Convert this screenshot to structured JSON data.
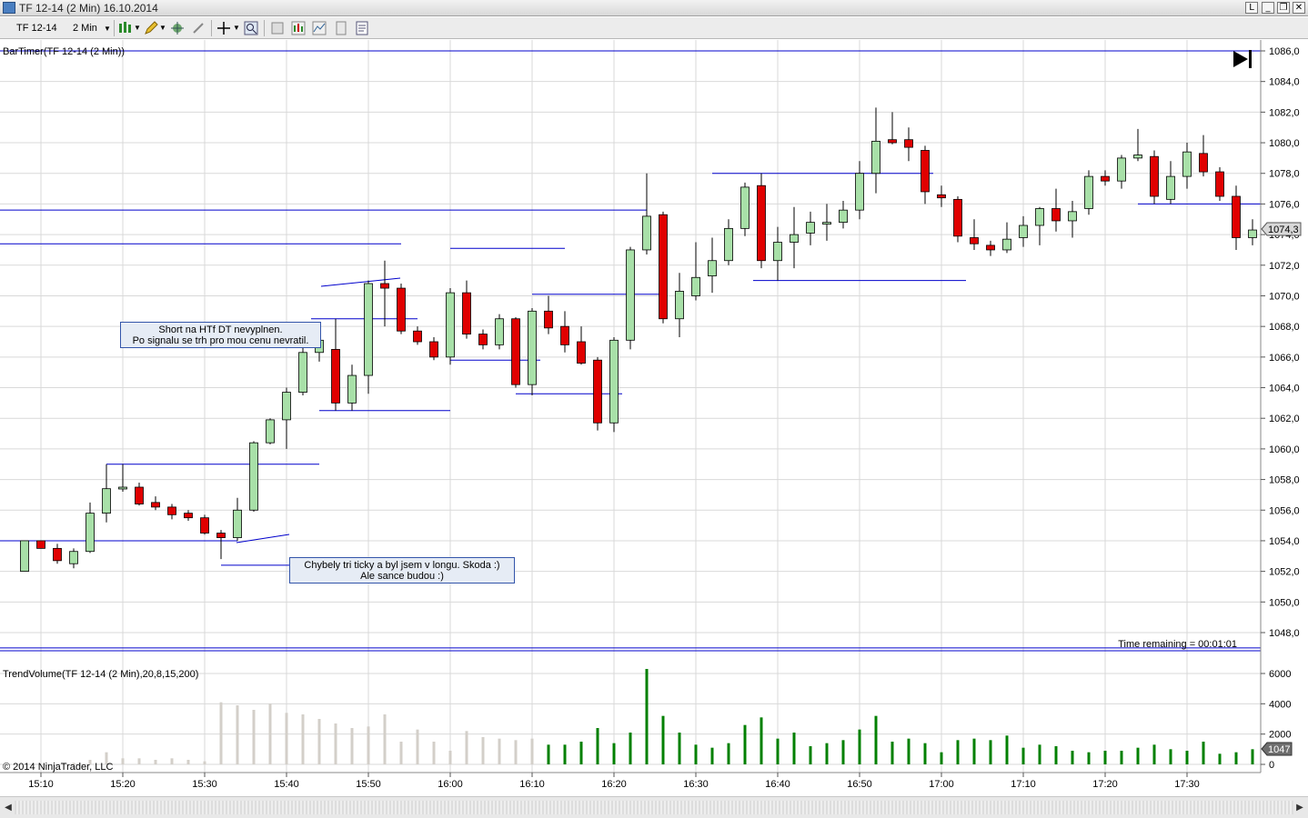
{
  "window": {
    "title": "TF 12-14 (2 Min)  16.10.2014",
    "buttons": [
      "L",
      "_",
      "❐",
      "✕"
    ]
  },
  "toolbar": {
    "instrument": "TF 12-14",
    "interval": "2 Min"
  },
  "price_panel": {
    "label": "BarTimer(TF 12-14 (2 Min))",
    "current_price": "1074,3",
    "time_remaining": "Time remaining = 00:01:01",
    "y_ticks": [
      "1086,0",
      "1084,0",
      "1082,0",
      "1080,0",
      "1078,0",
      "1076,0",
      "1074,0",
      "1072,0",
      "1070,0",
      "1068,0",
      "1066,0",
      "1064,0",
      "1062,0",
      "1060,0",
      "1058,0",
      "1056,0",
      "1054,0",
      "1052,0",
      "1050,0",
      "1048,0"
    ]
  },
  "volume_panel": {
    "label": "TrendVolume(TF 12-14 (2 Min),20,8,15,200)",
    "current_volume": "1047",
    "y_ticks": [
      "6000",
      "4000",
      "2000",
      "0"
    ]
  },
  "copyright": "© 2014 NinjaTrader, LLC",
  "x_ticks": [
    "15:10",
    "15:20",
    "15:30",
    "15:40",
    "15:50",
    "16:00",
    "16:10",
    "16:20",
    "16:30",
    "16:40",
    "16:50",
    "17:00",
    "17:10",
    "17:20",
    "17:30"
  ],
  "annotations": [
    {
      "line1": "Short na HTf DT nevyplnen.",
      "line2": "Po signalu se trh pro mou cenu nevratil."
    },
    {
      "line1": "Chybely tri ticky a byl jsem v longu. Skoda :)",
      "line2": "Ale sance budou :)"
    }
  ],
  "colors": {
    "up": "#a8e0a8",
    "down": "#e00000",
    "level": "#0000cc",
    "vol_trend": "#008000",
    "vol_neutral": "#d3cfc9",
    "grid": "#d9d9d9"
  },
  "chart_data": {
    "type": "candlestick",
    "price_range": [
      1047,
      1087
    ],
    "volume_range": [
      0,
      6500
    ],
    "candles": [
      {
        "o": 1052,
        "h": 1054,
        "l": 1052,
        "c": 1054
      },
      {
        "o": 1054,
        "h": 1054,
        "l": 1053.5,
        "c": 1053.5
      },
      {
        "o": 1053.5,
        "h": 1053.8,
        "l": 1052.5,
        "c": 1052.7
      },
      {
        "o": 1052.5,
        "h": 1053.5,
        "l": 1052.2,
        "c": 1053.3
      },
      {
        "o": 1053.3,
        "h": 1056.5,
        "l": 1053.2,
        "c": 1055.8
      },
      {
        "o": 1055.8,
        "h": 1059,
        "l": 1055.2,
        "c": 1057.4
      },
      {
        "o": 1057.4,
        "h": 1059,
        "l": 1057.2,
        "c": 1057.5
      },
      {
        "o": 1057.5,
        "h": 1057.8,
        "l": 1056.3,
        "c": 1056.4
      },
      {
        "o": 1056.5,
        "h": 1056.9,
        "l": 1056.0,
        "c": 1056.2
      },
      {
        "o": 1056.2,
        "h": 1056.4,
        "l": 1055.4,
        "c": 1055.7
      },
      {
        "o": 1055.8,
        "h": 1056.0,
        "l": 1055.3,
        "c": 1055.5
      },
      {
        "o": 1055.5,
        "h": 1055.7,
        "l": 1054.4,
        "c": 1054.5
      },
      {
        "o": 1054.5,
        "h": 1054.7,
        "l": 1052.8,
        "c": 1054.2
      },
      {
        "o": 1054.2,
        "h": 1056.8,
        "l": 1054.0,
        "c": 1056.0
      },
      {
        "o": 1056.0,
        "h": 1060.5,
        "l": 1055.9,
        "c": 1060.4
      },
      {
        "o": 1060.4,
        "h": 1062.0,
        "l": 1060.3,
        "c": 1061.9
      },
      {
        "o": 1061.9,
        "h": 1064.0,
        "l": 1060.0,
        "c": 1063.7
      },
      {
        "o": 1063.7,
        "h": 1066.7,
        "l": 1063.5,
        "c": 1066.3
      },
      {
        "o": 1066.3,
        "h": 1067.2,
        "l": 1065.7,
        "c": 1067.1
      },
      {
        "o": 1066.5,
        "h": 1068.5,
        "l": 1062.5,
        "c": 1063.0
      },
      {
        "o": 1063.0,
        "h": 1065.5,
        "l": 1062.5,
        "c": 1064.8
      },
      {
        "o": 1064.8,
        "h": 1071.0,
        "l": 1063.6,
        "c": 1070.8
      },
      {
        "o": 1070.8,
        "h": 1072.3,
        "l": 1068.0,
        "c": 1070.5
      },
      {
        "o": 1070.5,
        "h": 1070.8,
        "l": 1067.5,
        "c": 1067.7
      },
      {
        "o": 1067.7,
        "h": 1068.0,
        "l": 1066.8,
        "c": 1067.0
      },
      {
        "o": 1067.0,
        "h": 1067.3,
        "l": 1065.8,
        "c": 1066.0
      },
      {
        "o": 1066.0,
        "h": 1070.5,
        "l": 1065.5,
        "c": 1070.2
      },
      {
        "o": 1070.2,
        "h": 1071.0,
        "l": 1067.2,
        "c": 1067.5
      },
      {
        "o": 1067.5,
        "h": 1067.8,
        "l": 1066.5,
        "c": 1066.8
      },
      {
        "o": 1066.8,
        "h": 1068.8,
        "l": 1066.5,
        "c": 1068.5
      },
      {
        "o": 1068.5,
        "h": 1068.6,
        "l": 1064.0,
        "c": 1064.2
      },
      {
        "o": 1064.2,
        "h": 1069.2,
        "l": 1063.5,
        "c": 1069.0
      },
      {
        "o": 1069.0,
        "h": 1070.0,
        "l": 1067.5,
        "c": 1067.9
      },
      {
        "o": 1068.0,
        "h": 1069.0,
        "l": 1066.3,
        "c": 1066.8
      },
      {
        "o": 1067.0,
        "h": 1068.0,
        "l": 1065.5,
        "c": 1065.6
      },
      {
        "o": 1065.8,
        "h": 1066.0,
        "l": 1061.2,
        "c": 1061.7
      },
      {
        "o": 1061.7,
        "h": 1067.3,
        "l": 1061.1,
        "c": 1067.1
      },
      {
        "o": 1067.1,
        "h": 1073.2,
        "l": 1066.5,
        "c": 1073.0
      },
      {
        "o": 1073.0,
        "h": 1078.0,
        "l": 1072.7,
        "c": 1075.2
      },
      {
        "o": 1075.3,
        "h": 1075.5,
        "l": 1068.2,
        "c": 1068.5
      },
      {
        "o": 1068.5,
        "h": 1071.5,
        "l": 1067.3,
        "c": 1070.3
      },
      {
        "o": 1070.0,
        "h": 1073.5,
        "l": 1069.7,
        "c": 1071.2
      },
      {
        "o": 1071.3,
        "h": 1073.8,
        "l": 1070.2,
        "c": 1072.3
      },
      {
        "o": 1072.3,
        "h": 1075.0,
        "l": 1072.0,
        "c": 1074.4
      },
      {
        "o": 1074.4,
        "h": 1077.4,
        "l": 1073.9,
        "c": 1077.1
      },
      {
        "o": 1077.2,
        "h": 1078.0,
        "l": 1071.8,
        "c": 1072.3
      },
      {
        "o": 1072.3,
        "h": 1074.5,
        "l": 1071.0,
        "c": 1073.5
      },
      {
        "o": 1073.5,
        "h": 1075.8,
        "l": 1071.8,
        "c": 1074.0
      },
      {
        "o": 1074.1,
        "h": 1075.5,
        "l": 1073.3,
        "c": 1074.8
      },
      {
        "o": 1074.8,
        "h": 1076.0,
        "l": 1073.6,
        "c": 1074.8
      },
      {
        "o": 1074.8,
        "h": 1076.2,
        "l": 1074.4,
        "c": 1075.6
      },
      {
        "o": 1075.6,
        "h": 1078.8,
        "l": 1075.0,
        "c": 1078.0
      },
      {
        "o": 1078.0,
        "h": 1082.3,
        "l": 1076.7,
        "c": 1080.1
      },
      {
        "o": 1080.2,
        "h": 1082.0,
        "l": 1079.9,
        "c": 1080.0
      },
      {
        "o": 1080.2,
        "h": 1081.0,
        "l": 1078.8,
        "c": 1079.7
      },
      {
        "o": 1079.5,
        "h": 1079.8,
        "l": 1076.0,
        "c": 1076.8
      },
      {
        "o": 1076.6,
        "h": 1077.2,
        "l": 1075.8,
        "c": 1076.4
      },
      {
        "o": 1076.3,
        "h": 1076.5,
        "l": 1073.5,
        "c": 1073.9
      },
      {
        "o": 1073.8,
        "h": 1075.0,
        "l": 1073.0,
        "c": 1073.4
      },
      {
        "o": 1073.3,
        "h": 1073.6,
        "l": 1072.6,
        "c": 1073.0
      },
      {
        "o": 1073.0,
        "h": 1074.8,
        "l": 1072.8,
        "c": 1073.7
      },
      {
        "o": 1073.8,
        "h": 1075.2,
        "l": 1073.2,
        "c": 1074.6
      },
      {
        "o": 1074.6,
        "h": 1075.8,
        "l": 1073.3,
        "c": 1075.7
      },
      {
        "o": 1075.7,
        "h": 1077.0,
        "l": 1074.2,
        "c": 1074.9
      },
      {
        "o": 1074.9,
        "h": 1076.2,
        "l": 1073.8,
        "c": 1075.5
      },
      {
        "o": 1075.7,
        "h": 1078.2,
        "l": 1075.3,
        "c": 1077.8
      },
      {
        "o": 1077.8,
        "h": 1078.2,
        "l": 1077.2,
        "c": 1077.5
      },
      {
        "o": 1077.5,
        "h": 1079.2,
        "l": 1077.0,
        "c": 1079.0
      },
      {
        "o": 1079.0,
        "h": 1080.9,
        "l": 1078.8,
        "c": 1079.2
      },
      {
        "o": 1079.1,
        "h": 1079.5,
        "l": 1076.0,
        "c": 1076.5
      },
      {
        "o": 1076.3,
        "h": 1078.8,
        "l": 1076.0,
        "c": 1077.8
      },
      {
        "o": 1077.8,
        "h": 1080.0,
        "l": 1077.0,
        "c": 1079.4
      },
      {
        "o": 1079.3,
        "h": 1080.5,
        "l": 1077.8,
        "c": 1078.1
      },
      {
        "o": 1078.1,
        "h": 1078.4,
        "l": 1076.2,
        "c": 1076.5
      },
      {
        "o": 1076.5,
        "h": 1077.2,
        "l": 1073.0,
        "c": 1073.8
      },
      {
        "o": 1073.8,
        "h": 1075.0,
        "l": 1073.3,
        "c": 1074.3
      }
    ],
    "volumes": [
      {
        "v": 0,
        "t": "n"
      },
      {
        "v": 0,
        "t": "n"
      },
      {
        "v": 0,
        "t": "n"
      },
      {
        "v": 100,
        "t": "n"
      },
      {
        "v": 300,
        "t": "n"
      },
      {
        "v": 800,
        "t": "n"
      },
      {
        "v": 400,
        "t": "n"
      },
      {
        "v": 400,
        "t": "n"
      },
      {
        "v": 300,
        "t": "n"
      },
      {
        "v": 400,
        "t": "n"
      },
      {
        "v": 300,
        "t": "n"
      },
      {
        "v": 200,
        "t": "n"
      },
      {
        "v": 4100,
        "t": "n"
      },
      {
        "v": 3900,
        "t": "n"
      },
      {
        "v": 3600,
        "t": "n"
      },
      {
        "v": 4000,
        "t": "n"
      },
      {
        "v": 3400,
        "t": "n"
      },
      {
        "v": 3300,
        "t": "n"
      },
      {
        "v": 3000,
        "t": "n"
      },
      {
        "v": 2700,
        "t": "n"
      },
      {
        "v": 2400,
        "t": "n"
      },
      {
        "v": 2500,
        "t": "n"
      },
      {
        "v": 3300,
        "t": "n"
      },
      {
        "v": 1500,
        "t": "n"
      },
      {
        "v": 2300,
        "t": "n"
      },
      {
        "v": 1500,
        "t": "n"
      },
      {
        "v": 900,
        "t": "n"
      },
      {
        "v": 2200,
        "t": "n"
      },
      {
        "v": 1800,
        "t": "n"
      },
      {
        "v": 1700,
        "t": "n"
      },
      {
        "v": 1600,
        "t": "n"
      },
      {
        "v": 1700,
        "t": "n"
      },
      {
        "v": 1300,
        "t": "t"
      },
      {
        "v": 1300,
        "t": "t"
      },
      {
        "v": 1500,
        "t": "t"
      },
      {
        "v": 2400,
        "t": "t"
      },
      {
        "v": 1400,
        "t": "t"
      },
      {
        "v": 2100,
        "t": "t"
      },
      {
        "v": 6300,
        "t": "t"
      },
      {
        "v": 3200,
        "t": "t"
      },
      {
        "v": 2100,
        "t": "t"
      },
      {
        "v": 1300,
        "t": "t"
      },
      {
        "v": 1100,
        "t": "t"
      },
      {
        "v": 1400,
        "t": "t"
      },
      {
        "v": 2600,
        "t": "t"
      },
      {
        "v": 3100,
        "t": "t"
      },
      {
        "v": 1700,
        "t": "t"
      },
      {
        "v": 2100,
        "t": "t"
      },
      {
        "v": 1200,
        "t": "t"
      },
      {
        "v": 1400,
        "t": "t"
      },
      {
        "v": 1600,
        "t": "t"
      },
      {
        "v": 2300,
        "t": "t"
      },
      {
        "v": 3200,
        "t": "t"
      },
      {
        "v": 1500,
        "t": "t"
      },
      {
        "v": 1700,
        "t": "t"
      },
      {
        "v": 1400,
        "t": "t"
      },
      {
        "v": 800,
        "t": "t"
      },
      {
        "v": 1600,
        "t": "t"
      },
      {
        "v": 1700,
        "t": "t"
      },
      {
        "v": 1600,
        "t": "t"
      },
      {
        "v": 1900,
        "t": "t"
      },
      {
        "v": 1100,
        "t": "t"
      },
      {
        "v": 1300,
        "t": "t"
      },
      {
        "v": 1200,
        "t": "t"
      },
      {
        "v": 900,
        "t": "t"
      },
      {
        "v": 800,
        "t": "t"
      },
      {
        "v": 900,
        "t": "t"
      },
      {
        "v": 900,
        "t": "t"
      },
      {
        "v": 1100,
        "t": "t"
      },
      {
        "v": 1300,
        "t": "t"
      },
      {
        "v": 1000,
        "t": "t"
      },
      {
        "v": 900,
        "t": "t"
      },
      {
        "v": 1500,
        "t": "t"
      },
      {
        "v": 700,
        "t": "t"
      },
      {
        "v": 800,
        "t": "t"
      },
      {
        "v": 1000,
        "t": "t"
      }
    ],
    "level_lines": [
      {
        "price": 1086.0,
        "x0": 0,
        "x1": 75
      },
      {
        "price": 1047.0,
        "x0": 0,
        "x1": 75
      },
      {
        "price": 1075.6,
        "x0": 0,
        "x1": 38
      },
      {
        "price": 1073.4,
        "x0": 0,
        "x1": 23
      },
      {
        "price": 1054.0,
        "x0": 0,
        "x1": 13
      },
      {
        "price": 1059.0,
        "x0": 5,
        "x1": 18
      },
      {
        "price": 1052.4,
        "x0": 12,
        "x1": 20
      },
      {
        "price": 1062.5,
        "x0": 18,
        "x1": 26
      },
      {
        "price": 1068.5,
        "x0": 17.5,
        "x1": 24
      },
      {
        "price": 1073.1,
        "x0": 26,
        "x1": 33
      },
      {
        "price": 1070.1,
        "x0": 31,
        "x1": 39
      },
      {
        "price": 1065.8,
        "x0": 26,
        "x1": 31.5
      },
      {
        "price": 1063.6,
        "x0": 30,
        "x1": 36.5
      },
      {
        "price": 1078.0,
        "x0": 42,
        "x1": 55.5
      },
      {
        "price": 1071.0,
        "x0": 44.5,
        "x1": 57.5
      },
      {
        "price": 1076.0,
        "x0": 68,
        "x1": 75
      }
    ]
  }
}
